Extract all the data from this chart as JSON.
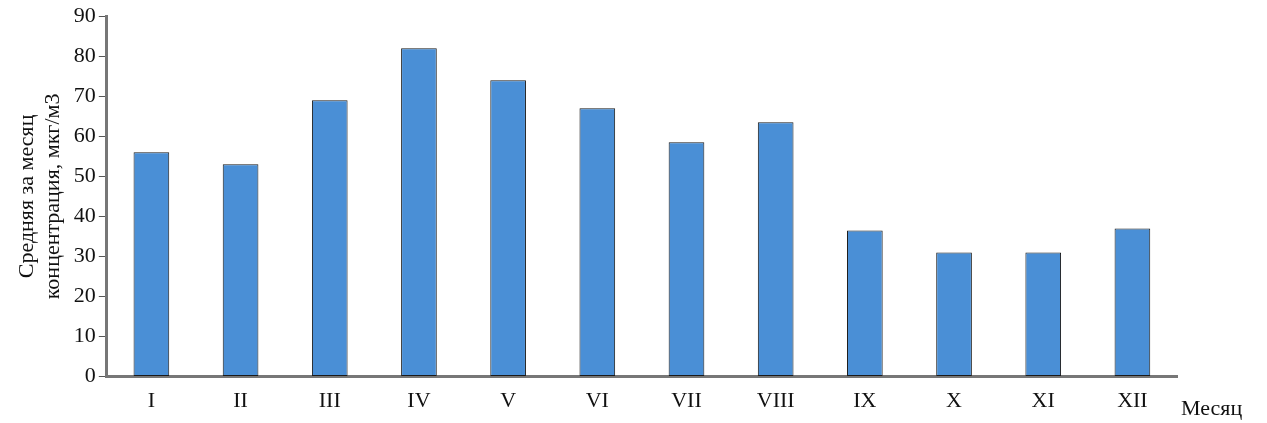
{
  "chart_data": {
    "type": "bar",
    "xlabel": "Месяц",
    "ylabel": "Средняя за месяц концентрация, мкг/м3",
    "categories": [
      "I",
      "II",
      "III",
      "IV",
      "V",
      "VI",
      "VII",
      "VIII",
      "IX",
      "X",
      "XI",
      "XII"
    ],
    "values": [
      56,
      53,
      69,
      82,
      74,
      67,
      58.5,
      63.5,
      36.5,
      31,
      31,
      37
    ],
    "color": "#4a8fd6",
    "ylim": [
      0,
      90
    ],
    "yticks": [
      0,
      10,
      20,
      30,
      40,
      50,
      60,
      70,
      80,
      90
    ],
    "grid": false,
    "legend": false
  }
}
